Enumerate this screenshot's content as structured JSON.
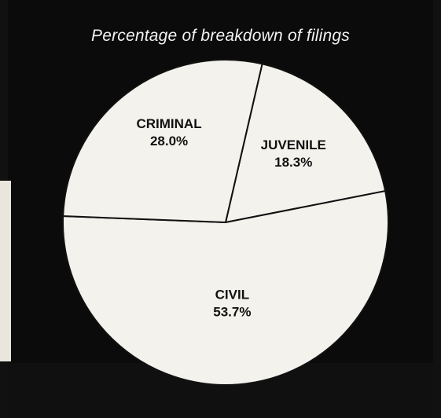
{
  "chart_data": {
    "type": "pie",
    "title": "Percentage of breakdown of filings",
    "slices": [
      {
        "label": "JUVENILE",
        "value": 18.3,
        "value_text": "18.3%"
      },
      {
        "label": "CIVIL",
        "value": 53.7,
        "value_text": "53.7%"
      },
      {
        "label": "CRIMINAL",
        "value": 28.0,
        "value_text": "28.0%"
      }
    ],
    "colors": {
      "background": "#0b0b0b",
      "slice_fill": "#f4f2ec",
      "slice_stroke": "#111111",
      "title_color": "#f2f2f2"
    }
  }
}
